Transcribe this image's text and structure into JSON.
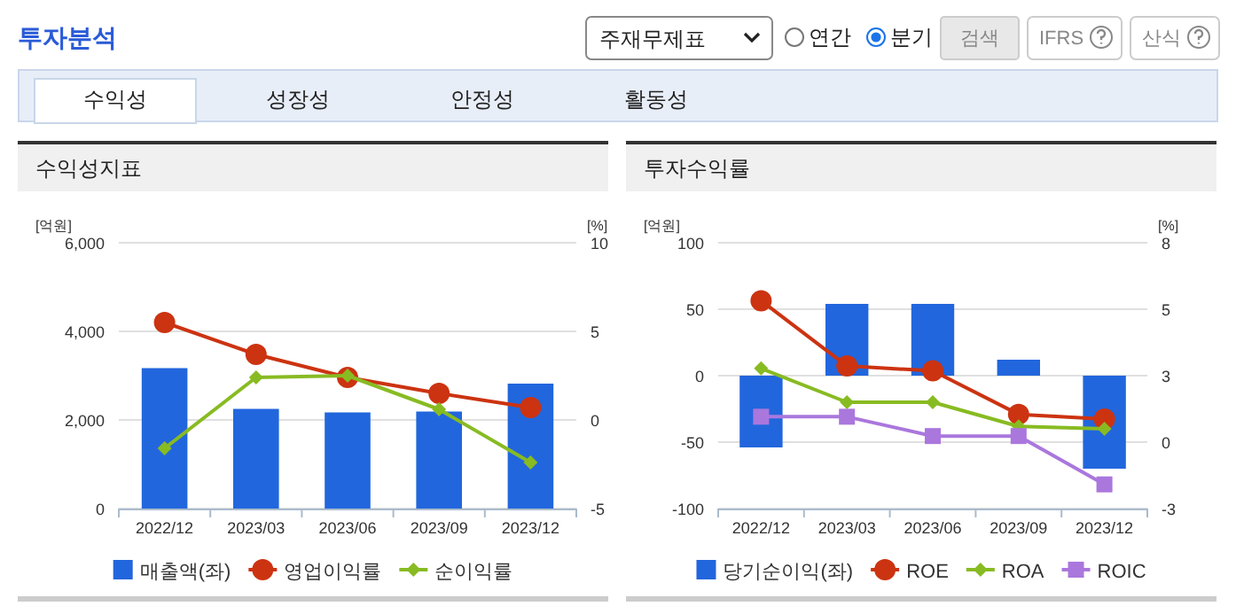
{
  "chart_data": [
    {
      "type": "other",
      "title": "투자분석",
      "annotations": [
        "주재무제표",
        "연간",
        "분기",
        "검색",
        "IFRS",
        "산식",
        "수익성",
        "성장성",
        "안정성",
        "활동성"
      ]
    },
    {
      "type": "bar",
      "title": "수익성지표",
      "ylabel": "[억원]",
      "y2label": "[%]",
      "categories": [
        "2022/12",
        "2023/03",
        "2023/06",
        "2023/09",
        "2023/12"
      ],
      "ylim": [
        0,
        6000
      ],
      "yticks": [
        0,
        {
          "value": 2000,
          "label": "2,000"
        },
        {
          "value": 4000,
          "label": "4,000"
        },
        {
          "value": 6000,
          "label": "6,000"
        }
      ],
      "y2lim": [
        -5,
        10
      ],
      "y2ticks": [
        -5,
        0,
        5,
        10
      ],
      "grid": "y",
      "legend": "bottom",
      "series": [
        {
          "name": "매출액(좌)",
          "type": "bar",
          "color": "#2266dd",
          "values": [
            3170,
            2250,
            2170,
            2190,
            2820
          ]
        },
        {
          "name": "영업이익률",
          "type": "line",
          "axis": "y2",
          "marker": "circle",
          "color": "#cc3311",
          "values": [
            5.5,
            3.7,
            2.4,
            1.5,
            0.7
          ]
        },
        {
          "name": "순이익률",
          "type": "line",
          "axis": "y2",
          "marker": "diamond",
          "color": "#88bb22",
          "values": [
            -1.6,
            2.4,
            2.5,
            0.6,
            -2.4
          ]
        }
      ]
    },
    {
      "type": "bar",
      "title": "투자수익률",
      "ylabel": "[억원]",
      "y2label": "[%]",
      "categories": [
        "2022/12",
        "2023/03",
        "2023/06",
        "2023/09",
        "2023/12"
      ],
      "ylim": [
        -100,
        100
      ],
      "yticks": [
        -100,
        -50,
        0,
        50,
        100
      ],
      "y2lim": [
        -3,
        8
      ],
      "y2ticks": [
        -3,
        {
          "value": -0.25,
          "label": "0"
        },
        {
          "value": 2.5,
          "label": "3"
        },
        {
          "value": 5.25,
          "label": "5"
        },
        8
      ],
      "grid": "y",
      "legend": "bottom",
      "series": [
        {
          "name": "당기순이익(좌)",
          "type": "bar",
          "color": "#2266dd",
          "values": [
            -54,
            54,
            54,
            12,
            -70
          ]
        },
        {
          "name": "ROE",
          "type": "line",
          "axis": "y2",
          "marker": "circle",
          "color": "#cc3311",
          "values": [
            5.6,
            2.9,
            2.7,
            0.9,
            0.7
          ]
        },
        {
          "name": "ROA",
          "type": "line",
          "axis": "y2",
          "marker": "diamond",
          "color": "#88bb22",
          "values": [
            2.8,
            1.4,
            1.4,
            0.4,
            0.3
          ]
        },
        {
          "name": "ROIC",
          "type": "line",
          "axis": "y2",
          "marker": "square",
          "color": "#aa77dd",
          "values": [
            0.8,
            0.8,
            0.0,
            0.0,
            -2.0
          ]
        }
      ]
    }
  ]
}
